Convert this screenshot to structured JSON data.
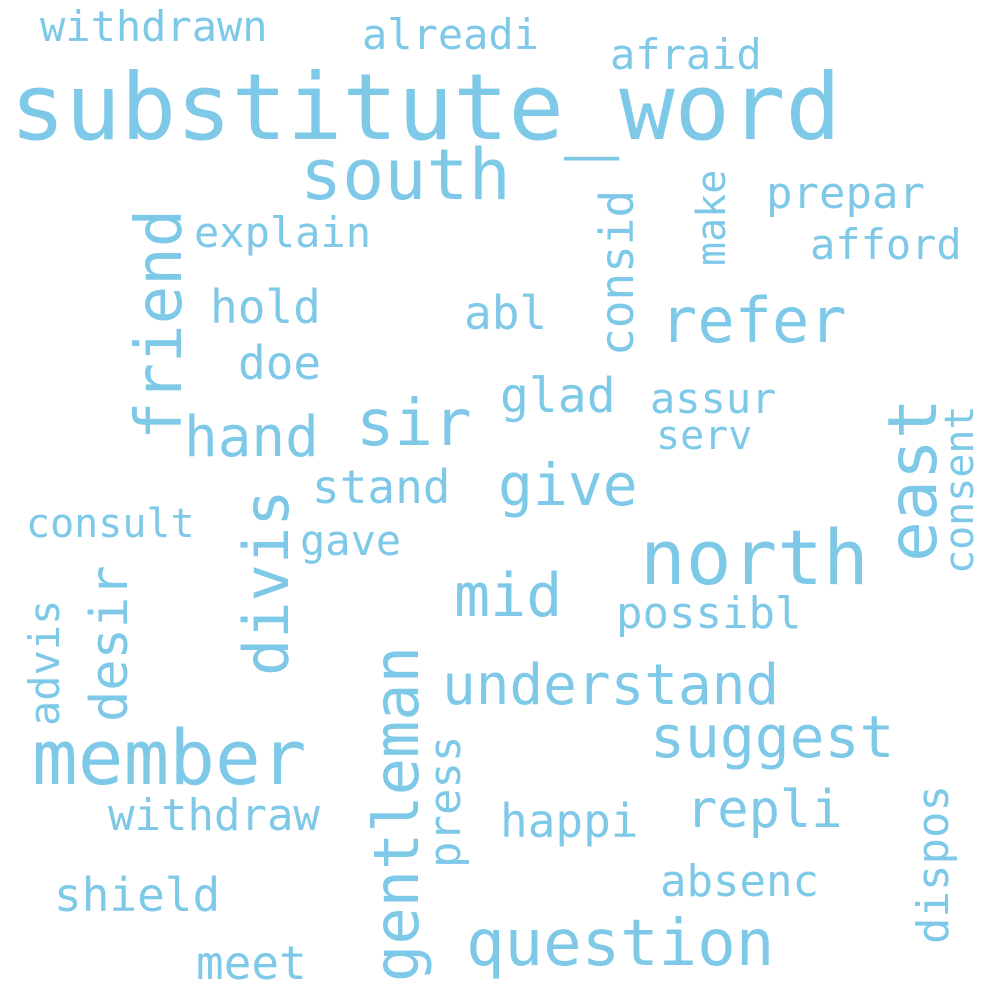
{
  "color": "#7ec8e8",
  "words": {
    "substitute_word": "substitute_word",
    "south": "south",
    "member": "member",
    "north": "north",
    "east": "east",
    "friend": "friend",
    "gentleman": "gentleman",
    "question": "question",
    "refer": "refer",
    "sir": "sir",
    "mid": "mid",
    "suggest": "suggest",
    "give": "give",
    "understand": "understand",
    "divis": "divis",
    "hand": "hand",
    "desir": "desir",
    "repli": "repli",
    "withdrawn": "withdrawn",
    "alreadi": "alreadi",
    "afraid": "afraid",
    "prepar": "prepar",
    "explain": "explain",
    "afford": "afford",
    "consid": "consid",
    "make": "make",
    "hold": "hold",
    "abl": "abl",
    "doe": "doe",
    "glad": "glad",
    "assur": "assur",
    "serv": "serv",
    "stand": "stand",
    "consent": "consent",
    "consult": "consult",
    "gave": "gave",
    "possibl": "possibl",
    "advis": "advis",
    "press": "press",
    "withdraw": "withdraw",
    "happi": "happi",
    "absenc": "absenc",
    "dispos": "dispos",
    "shield": "shield",
    "meet": "meet"
  }
}
